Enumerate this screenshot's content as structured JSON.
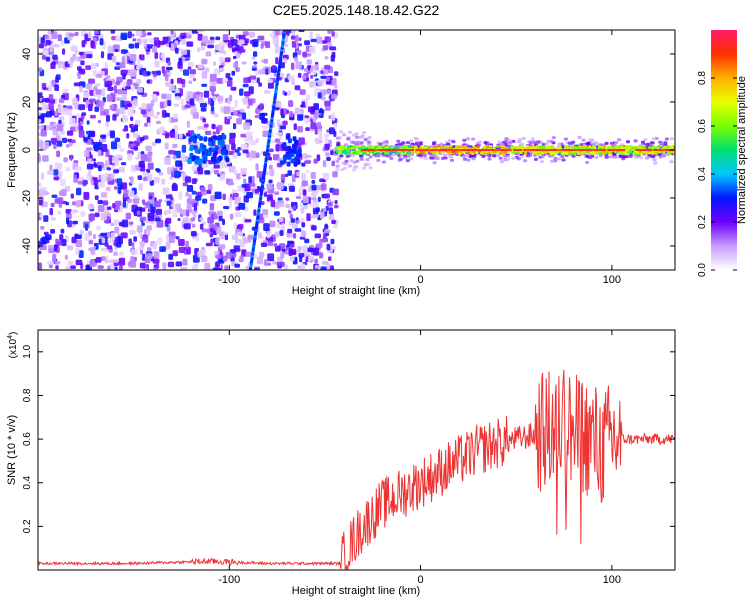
{
  "figure": {
    "title": "C2E5.2025.148.18.42.G22"
  },
  "chart_data": [
    {
      "type": "heatmap",
      "title": "C2E5.2025.148.18.42.G22",
      "xlabel": "Height of straight line (km)",
      "ylabel": "Frequency (Hz)",
      "xlim": [
        -200,
        133
      ],
      "ylim": [
        -50,
        50
      ],
      "xticks": [
        -100,
        0,
        100
      ],
      "yticks": [
        -40,
        -20,
        0,
        20,
        40
      ],
      "colorbar": {
        "label": "Normalized spectral amplitude",
        "range": [
          0,
          1
        ],
        "ticks": [
          0.0,
          0.2,
          0.4,
          0.6,
          0.8
        ],
        "colors": [
          "#ffffff",
          "#c79cff",
          "#6d00ff",
          "#0018ff",
          "#00c8ff",
          "#00e070",
          "#78ff00",
          "#e8ff00",
          "#ffb000",
          "#ff3000",
          "#ff1a6a"
        ]
      },
      "features": {
        "noise_region_x": [
          -200,
          -44
        ],
        "steady_line": {
          "x": [
            -44,
            133
          ],
          "frequency": 0,
          "peak_amplitude": 0.95
        },
        "sloped_trace": {
          "x_start": -89,
          "freq_start": -50,
          "x_end": -71,
          "freq_end": 50,
          "amplitude": 0.3
        }
      }
    },
    {
      "type": "line",
      "xlabel": "Height of straight line (km)",
      "ylabel": "SNR (10 * v/v)",
      "scale_note": "(x10",
      "scale_exp": "4",
      "xlim": [
        -200,
        133
      ],
      "ylim": [
        0,
        1.1
      ],
      "xticks": [
        -100,
        0,
        100
      ],
      "yticks": [
        0.2,
        0.4,
        0.6,
        0.8,
        1.0
      ],
      "color": "#ee3333",
      "series": [
        {
          "x": [
            -200,
            -150,
            -110,
            -80,
            -42,
            -38,
            -30,
            -20,
            -10,
            0,
            10,
            20,
            30,
            40,
            50,
            60,
            70,
            75,
            80,
            85,
            90,
            95,
            100,
            105,
            110,
            120,
            133
          ],
          "y": [
            0.03,
            0.03,
            0.04,
            0.03,
            0.03,
            0.1,
            0.2,
            0.3,
            0.35,
            0.4,
            0.45,
            0.5,
            0.55,
            0.58,
            0.6,
            0.62,
            0.65,
            0.7,
            0.62,
            0.62,
            0.6,
            0.55,
            0.6,
            0.6,
            0.6,
            0.6,
            0.6
          ]
        }
      ]
    }
  ]
}
